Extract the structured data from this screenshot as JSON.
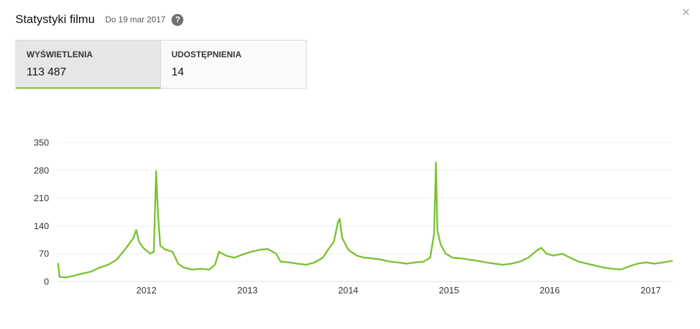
{
  "header": {
    "title": "Statystyki filmu",
    "date": "Do 19 mar 2017",
    "help_icon": "question-mark-icon",
    "close_icon": "close-icon"
  },
  "metrics": [
    {
      "label": "WYŚWIETLENIA",
      "value": "113 487"
    },
    {
      "label": "UDOSTĘPNIENIA",
      "value": "14"
    }
  ],
  "colors": {
    "series": "#7ac230",
    "grid": "#ececec",
    "active_tab_bg": "#e6e6e6"
  },
  "chart_data": {
    "type": "line",
    "title": "",
    "xlabel": "",
    "ylabel": "",
    "ylim": [
      0,
      350
    ],
    "yticks": [
      "0",
      "70",
      "140",
      "210",
      "280",
      "350"
    ],
    "xticks": [
      "2012",
      "2013",
      "2014",
      "2015",
      "2016",
      "2017"
    ],
    "xlim": [
      "2011-02-15",
      "2017-03-19"
    ],
    "grid": true,
    "series": [
      {
        "name": "",
        "color": "#7ac230",
        "points": [
          [
            "2011-02-15",
            45
          ],
          [
            "2011-02-20",
            12
          ],
          [
            "2011-03-15",
            10
          ],
          [
            "2011-04-15",
            15
          ],
          [
            "2011-05-15",
            20
          ],
          [
            "2011-06-15",
            25
          ],
          [
            "2011-07-15",
            35
          ],
          [
            "2011-08-15",
            42
          ],
          [
            "2011-09-15",
            55
          ],
          [
            "2011-10-15",
            80
          ],
          [
            "2011-11-15",
            110
          ],
          [
            "2011-11-25",
            130
          ],
          [
            "2011-12-05",
            100
          ],
          [
            "2011-12-20",
            85
          ],
          [
            "2012-01-15",
            70
          ],
          [
            "2012-01-28",
            75
          ],
          [
            "2012-02-05",
            278
          ],
          [
            "2012-02-12",
            170
          ],
          [
            "2012-02-20",
            90
          ],
          [
            "2012-03-10",
            80
          ],
          [
            "2012-04-05",
            75
          ],
          [
            "2012-04-25",
            45
          ],
          [
            "2012-05-15",
            35
          ],
          [
            "2012-06-15",
            30
          ],
          [
            "2012-07-15",
            32
          ],
          [
            "2012-08-15",
            30
          ],
          [
            "2012-09-05",
            42
          ],
          [
            "2012-09-20",
            75
          ],
          [
            "2012-10-15",
            65
          ],
          [
            "2012-11-15",
            60
          ],
          [
            "2012-12-15",
            68
          ],
          [
            "2013-01-15",
            75
          ],
          [
            "2013-02-15",
            80
          ],
          [
            "2013-03-15",
            82
          ],
          [
            "2013-04-15",
            70
          ],
          [
            "2013-05-01",
            50
          ],
          [
            "2013-06-01",
            48
          ],
          [
            "2013-07-01",
            45
          ],
          [
            "2013-08-01",
            42
          ],
          [
            "2013-09-01",
            48
          ],
          [
            "2013-10-01",
            60
          ],
          [
            "2013-10-20",
            80
          ],
          [
            "2013-11-10",
            100
          ],
          [
            "2013-11-25",
            150
          ],
          [
            "2013-12-01",
            158
          ],
          [
            "2013-12-10",
            110
          ],
          [
            "2014-01-01",
            80
          ],
          [
            "2014-02-01",
            65
          ],
          [
            "2014-03-01",
            60
          ],
          [
            "2014-04-01",
            58
          ],
          [
            "2014-05-01",
            55
          ],
          [
            "2014-06-01",
            50
          ],
          [
            "2014-07-01",
            48
          ],
          [
            "2014-08-01",
            45
          ],
          [
            "2014-09-01",
            48
          ],
          [
            "2014-10-01",
            50
          ],
          [
            "2014-10-25",
            60
          ],
          [
            "2014-11-08",
            120
          ],
          [
            "2014-11-15",
            300
          ],
          [
            "2014-11-20",
            130
          ],
          [
            "2014-12-01",
            95
          ],
          [
            "2014-12-20",
            70
          ],
          [
            "2015-01-15",
            60
          ],
          [
            "2015-02-15",
            58
          ],
          [
            "2015-03-15",
            55
          ],
          [
            "2015-04-15",
            52
          ],
          [
            "2015-05-15",
            48
          ],
          [
            "2015-06-15",
            45
          ],
          [
            "2015-07-15",
            42
          ],
          [
            "2015-08-15",
            45
          ],
          [
            "2015-09-15",
            50
          ],
          [
            "2015-10-15",
            60
          ],
          [
            "2015-11-15",
            78
          ],
          [
            "2015-12-01",
            85
          ],
          [
            "2015-12-20",
            70
          ],
          [
            "2016-01-15",
            65
          ],
          [
            "2016-02-15",
            70
          ],
          [
            "2016-03-15",
            60
          ],
          [
            "2016-04-15",
            50
          ],
          [
            "2016-05-15",
            45
          ],
          [
            "2016-06-15",
            40
          ],
          [
            "2016-07-15",
            35
          ],
          [
            "2016-08-15",
            32
          ],
          [
            "2016-09-15",
            30
          ],
          [
            "2016-10-15",
            38
          ],
          [
            "2016-11-15",
            45
          ],
          [
            "2016-12-15",
            48
          ],
          [
            "2017-01-15",
            45
          ],
          [
            "2017-02-15",
            48
          ],
          [
            "2017-03-19",
            52
          ]
        ]
      }
    ]
  }
}
